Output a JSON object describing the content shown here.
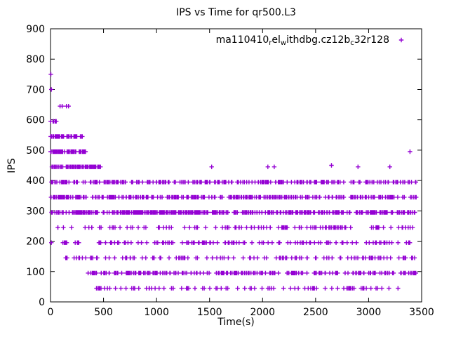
{
  "chart_data": {
    "type": "scatter",
    "title": "IPS vs Time for qr500.L3",
    "xlabel": "Time(s)",
    "ylabel": "IPS",
    "xlim": [
      0,
      3500
    ],
    "ylim": [
      0,
      900
    ],
    "xticks": [
      0,
      500,
      1000,
      1500,
      2000,
      2500,
      3000,
      3500
    ],
    "yticks": [
      0,
      100,
      200,
      300,
      400,
      500,
      600,
      700,
      800,
      900
    ],
    "grid": false,
    "legend": {
      "position": "top-right",
      "label_plain": "ma110410_rel_withdbg.cz12b_c32r128",
      "segments": [
        {
          "text": "ma110410",
          "sub": false
        },
        {
          "text": "r",
          "sub": true
        },
        {
          "text": "el",
          "sub": false
        },
        {
          "text": "w",
          "sub": true
        },
        {
          "text": "ithdbg.cz12b",
          "sub": false
        },
        {
          "text": "c",
          "sub": true
        },
        {
          "text": "32r128",
          "sub": false
        }
      ]
    },
    "marker": {
      "shape": "plus",
      "color": "#9400d3",
      "size": 3.2,
      "stroke_width": 1.4
    },
    "series_bands": [
      {
        "y": 45,
        "x0": 380,
        "x1": 3380,
        "n": 85
      },
      {
        "y": 95,
        "x0": 350,
        "x1": 3450,
        "n": 220
      },
      {
        "y": 145,
        "x0": 90,
        "x1": 3450,
        "n": 120
      },
      {
        "y": 195,
        "x0": 0,
        "x1": 3450,
        "n": 130
      },
      {
        "y": 245,
        "x0": 0,
        "x1": 3450,
        "n": 120
      },
      {
        "y": 295,
        "x0": 0,
        "x1": 3450,
        "n": 400
      },
      {
        "y": 345,
        "x0": 0,
        "x1": 3450,
        "n": 300
      },
      {
        "y": 395,
        "x0": 0,
        "x1": 3450,
        "n": 240
      },
      {
        "y": 445,
        "x0": 0,
        "x1": 480,
        "n": 70
      },
      {
        "y": 495,
        "x0": 0,
        "x1": 330,
        "n": 55
      },
      {
        "y": 545,
        "x0": 0,
        "x1": 300,
        "n": 45
      },
      {
        "y": 595,
        "x0": 0,
        "x1": 60,
        "n": 6
      }
    ],
    "extra_points": [
      [
        3,
        750
      ],
      [
        8,
        700
      ],
      [
        90,
        645
      ],
      [
        110,
        645
      ],
      [
        150,
        645
      ],
      [
        170,
        645
      ],
      [
        1520,
        445
      ],
      [
        2050,
        445
      ],
      [
        2110,
        445
      ],
      [
        2650,
        450
      ],
      [
        2900,
        445
      ],
      [
        3200,
        445
      ],
      [
        3390,
        495
      ]
    ]
  }
}
